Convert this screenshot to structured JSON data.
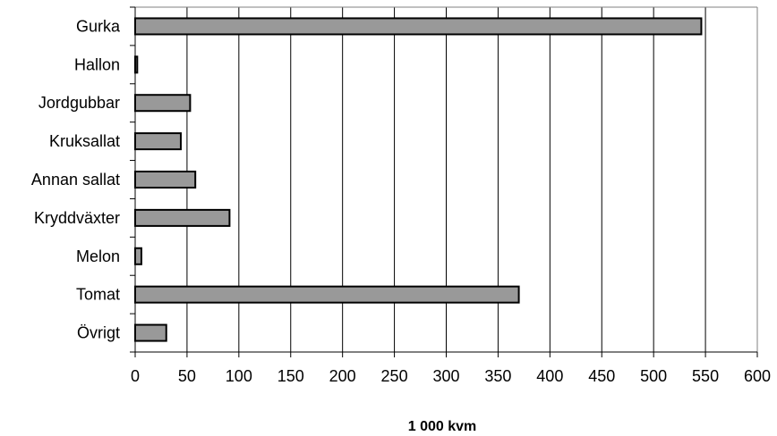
{
  "chart_data": {
    "type": "bar",
    "orientation": "horizontal",
    "categories": [
      "Gurka",
      "Hallon",
      "Jordgubbar",
      "Kruksallat",
      "Annan sallat",
      "Kryddväxter",
      "Melon",
      "Tomat",
      "Övrigt"
    ],
    "values": [
      546,
      2,
      53,
      44,
      58,
      91,
      6,
      370,
      30
    ],
    "title": "",
    "xlabel": "1 000 kvm",
    "ylabel": "",
    "xlim": [
      0,
      600
    ],
    "xticks": [
      0,
      50,
      100,
      150,
      200,
      250,
      300,
      350,
      400,
      450,
      500,
      550,
      600
    ],
    "grid": "vertical",
    "legend": "none",
    "bar_color": "#999999",
    "bar_edge_color": "#000000",
    "grid_color": "#000000"
  }
}
